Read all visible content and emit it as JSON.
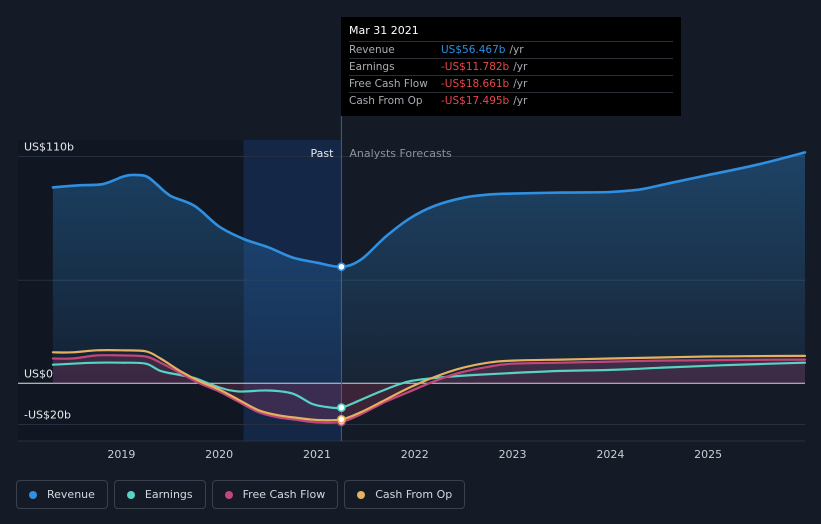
{
  "chart_data": {
    "type": "line",
    "title": "",
    "x_unit": "year",
    "xlim": [
      2018.25,
      2025.99
    ],
    "ylim": [
      -28,
      118
    ],
    "y_tick_labels": [
      {
        "value": 110,
        "label": "US$110b"
      },
      {
        "value": 0,
        "label": "US$0"
      },
      {
        "value": -20,
        "label": "-US$20b"
      }
    ],
    "x_tick_labels": [
      {
        "value": 2019,
        "label": "2019"
      },
      {
        "value": 2020,
        "label": "2020"
      },
      {
        "value": 2021,
        "label": "2021"
      },
      {
        "value": 2022,
        "label": "2022"
      },
      {
        "value": 2023,
        "label": "2023"
      },
      {
        "value": 2024,
        "label": "2024"
      },
      {
        "value": 2025,
        "label": "2025"
      }
    ],
    "past_label": "Past",
    "forecast_label": "Analysts Forecasts",
    "divider_x": 2021.25,
    "highlight_range": [
      2020.25,
      2021.25
    ],
    "series": [
      {
        "name": "Revenue",
        "color": "#2f8fe0",
        "fill": true,
        "points": [
          [
            2018.3,
            95
          ],
          [
            2018.55,
            96
          ],
          [
            2018.8,
            96.5
          ],
          [
            2018.95,
            99
          ],
          [
            2019.0,
            100
          ],
          [
            2019.1,
            101
          ],
          [
            2019.25,
            100.5
          ],
          [
            2019.35,
            97
          ],
          [
            2019.5,
            91
          ],
          [
            2019.75,
            86
          ],
          [
            2020.0,
            76
          ],
          [
            2020.25,
            70
          ],
          [
            2020.5,
            66
          ],
          [
            2020.75,
            61
          ],
          [
            2021.0,
            58.5
          ],
          [
            2021.25,
            56.5
          ],
          [
            2021.45,
            60
          ],
          [
            2021.7,
            71
          ],
          [
            2021.95,
            80
          ],
          [
            2022.2,
            86
          ],
          [
            2022.5,
            90
          ],
          [
            2022.75,
            91.5
          ],
          [
            2023.0,
            92
          ],
          [
            2023.5,
            92.5
          ],
          [
            2024.0,
            92.8
          ],
          [
            2024.3,
            94
          ],
          [
            2024.6,
            97
          ],
          [
            2025.0,
            101
          ],
          [
            2025.5,
            106
          ],
          [
            2025.99,
            112
          ]
        ]
      },
      {
        "name": "Earnings",
        "color": "#56d3c3",
        "fill": false,
        "points": [
          [
            2018.3,
            9
          ],
          [
            2018.5,
            9.5
          ],
          [
            2018.75,
            10
          ],
          [
            2019.0,
            10
          ],
          [
            2019.25,
            9.5
          ],
          [
            2019.4,
            6
          ],
          [
            2019.6,
            4
          ],
          [
            2019.75,
            2.5
          ],
          [
            2020.0,
            -2
          ],
          [
            2020.2,
            -4
          ],
          [
            2020.5,
            -3.5
          ],
          [
            2020.75,
            -5
          ],
          [
            2020.95,
            -10
          ],
          [
            2021.1,
            -11.5
          ],
          [
            2021.25,
            -11.8
          ],
          [
            2021.45,
            -8
          ],
          [
            2021.7,
            -3
          ],
          [
            2021.95,
            1
          ],
          [
            2022.3,
            3
          ],
          [
            2022.6,
            4
          ],
          [
            2023.0,
            5
          ],
          [
            2023.5,
            6
          ],
          [
            2024.0,
            6.5
          ],
          [
            2024.5,
            7.5
          ],
          [
            2025.0,
            8.5
          ],
          [
            2025.5,
            9.3
          ],
          [
            2025.99,
            10
          ]
        ]
      },
      {
        "name": "Free Cash Flow",
        "color": "#c2467a",
        "fill": true,
        "points": [
          [
            2018.3,
            12
          ],
          [
            2018.5,
            12
          ],
          [
            2018.75,
            13.5
          ],
          [
            2019.0,
            13.5
          ],
          [
            2019.25,
            13
          ],
          [
            2019.4,
            10
          ],
          [
            2019.6,
            5
          ],
          [
            2019.8,
            0
          ],
          [
            2020.0,
            -4
          ],
          [
            2020.2,
            -9
          ],
          [
            2020.4,
            -14
          ],
          [
            2020.6,
            -16.5
          ],
          [
            2020.8,
            -17.8
          ],
          [
            2021.0,
            -19
          ],
          [
            2021.25,
            -18.7
          ],
          [
            2021.45,
            -15
          ],
          [
            2021.7,
            -9
          ],
          [
            2021.95,
            -4
          ],
          [
            2022.2,
            1
          ],
          [
            2022.45,
            5
          ],
          [
            2022.75,
            8
          ],
          [
            2023.0,
            9.5
          ],
          [
            2023.5,
            10
          ],
          [
            2024.0,
            10.5
          ],
          [
            2024.5,
            11
          ],
          [
            2025.0,
            11.2
          ],
          [
            2025.5,
            11.4
          ],
          [
            2025.99,
            11.5
          ]
        ]
      },
      {
        "name": "Cash From Op",
        "color": "#e5b15f",
        "fill": false,
        "points": [
          [
            2018.3,
            15
          ],
          [
            2018.5,
            15
          ],
          [
            2018.75,
            16
          ],
          [
            2019.0,
            16
          ],
          [
            2019.25,
            15.5
          ],
          [
            2019.4,
            12
          ],
          [
            2019.6,
            6
          ],
          [
            2019.8,
            1
          ],
          [
            2020.0,
            -3
          ],
          [
            2020.2,
            -8
          ],
          [
            2020.4,
            -13
          ],
          [
            2020.6,
            -15.5
          ],
          [
            2020.8,
            -16.8
          ],
          [
            2021.0,
            -17.8
          ],
          [
            2021.25,
            -17.5
          ],
          [
            2021.45,
            -14
          ],
          [
            2021.7,
            -8
          ],
          [
            2021.95,
            -2
          ],
          [
            2022.2,
            3
          ],
          [
            2022.45,
            7
          ],
          [
            2022.75,
            10
          ],
          [
            2023.0,
            11
          ],
          [
            2023.5,
            11.5
          ],
          [
            2024.0,
            12
          ],
          [
            2024.5,
            12.5
          ],
          [
            2025.0,
            13
          ],
          [
            2025.5,
            13.2
          ],
          [
            2025.99,
            13.3
          ]
        ]
      }
    ]
  },
  "tooltip": {
    "date": "Mar 31 2021",
    "rows": [
      {
        "label": "Revenue",
        "value": "US$56.467b",
        "unit": "/yr",
        "color": "#2f8fe0"
      },
      {
        "label": "Earnings",
        "value": "-US$11.782b",
        "unit": "/yr",
        "color": "#e5484d"
      },
      {
        "label": "Free Cash Flow",
        "value": "-US$18.661b",
        "unit": "/yr",
        "color": "#e5484d"
      },
      {
        "label": "Cash From Op",
        "value": "-US$17.495b",
        "unit": "/yr",
        "color": "#e5484d"
      }
    ]
  },
  "legend": [
    {
      "label": "Revenue",
      "color": "#2f8fe0"
    },
    {
      "label": "Earnings",
      "color": "#56d3c3"
    },
    {
      "label": "Free Cash Flow",
      "color": "#c2467a"
    },
    {
      "label": "Cash From Op",
      "color": "#e5b15f"
    }
  ]
}
